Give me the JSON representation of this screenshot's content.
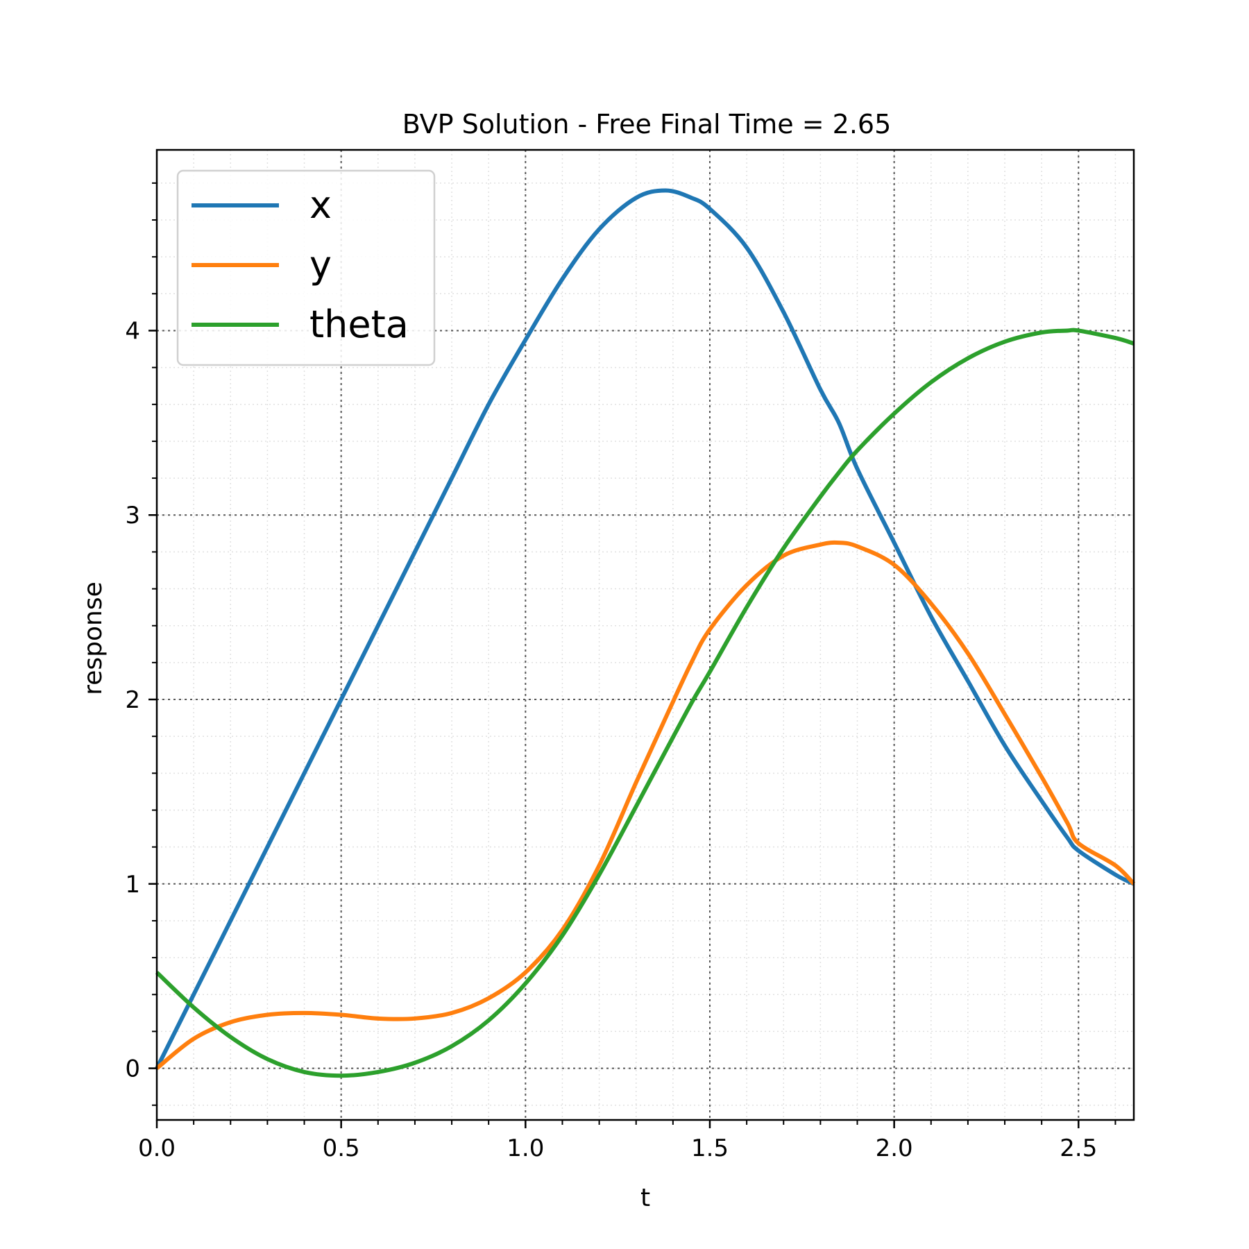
{
  "chart_data": {
    "type": "line",
    "title": "BVP Solution - Free Final Time = 2.65",
    "xlabel": "t",
    "ylabel": "response",
    "xlim": [
      0,
      2.65
    ],
    "ylim": [
      -0.28,
      4.98
    ],
    "xticks": [
      {
        "value": 0.0,
        "label": "0.0"
      },
      {
        "value": 0.5,
        "label": "0.5"
      },
      {
        "value": 1.0,
        "label": "1.0"
      },
      {
        "value": 1.5,
        "label": "1.5"
      },
      {
        "value": 2.0,
        "label": "2.0"
      },
      {
        "value": 2.5,
        "label": "2.5"
      }
    ],
    "yticks": [
      {
        "value": 0,
        "label": "0"
      },
      {
        "value": 1,
        "label": "1"
      },
      {
        "value": 2,
        "label": "2"
      },
      {
        "value": 3,
        "label": "3"
      },
      {
        "value": 4,
        "label": "4"
      }
    ],
    "x_minor_step": 0.1,
    "y_minor_step": 0.2,
    "grid": {
      "major": "dotted",
      "minor": "dotted"
    },
    "legend": "upper-left",
    "x": [
      0.0,
      0.1,
      0.2,
      0.3,
      0.4,
      0.5,
      0.6,
      0.7,
      0.8,
      0.9,
      1.0,
      1.1,
      1.2,
      1.3,
      1.38,
      1.45,
      1.5,
      1.6,
      1.7,
      1.8,
      1.85,
      1.9,
      2.0,
      2.1,
      2.2,
      2.3,
      2.4,
      2.47,
      2.5,
      2.6,
      2.65
    ],
    "series": [
      {
        "name": "x",
        "color": "#1f77b4",
        "values": [
          0.0,
          0.4,
          0.8,
          1.2,
          1.6,
          2.0,
          2.4,
          2.8,
          3.2,
          3.6,
          3.95,
          4.28,
          4.55,
          4.72,
          4.76,
          4.72,
          4.66,
          4.45,
          4.1,
          3.68,
          3.5,
          3.25,
          2.85,
          2.45,
          2.1,
          1.75,
          1.45,
          1.25,
          1.18,
          1.05,
          1.0
        ]
      },
      {
        "name": "y",
        "color": "#ff7f0e",
        "values": [
          0.0,
          0.16,
          0.25,
          0.29,
          0.3,
          0.29,
          0.27,
          0.27,
          0.3,
          0.38,
          0.52,
          0.75,
          1.1,
          1.55,
          1.9,
          2.2,
          2.38,
          2.62,
          2.78,
          2.84,
          2.85,
          2.83,
          2.73,
          2.52,
          2.25,
          1.92,
          1.58,
          1.33,
          1.22,
          1.1,
          1.0
        ]
      },
      {
        "name": "theta",
        "color": "#2ca02c",
        "values": [
          0.52,
          0.33,
          0.17,
          0.05,
          -0.02,
          -0.04,
          -0.02,
          0.03,
          0.12,
          0.26,
          0.46,
          0.72,
          1.05,
          1.42,
          1.72,
          1.98,
          2.15,
          2.5,
          2.82,
          3.1,
          3.23,
          3.35,
          3.55,
          3.72,
          3.85,
          3.94,
          3.99,
          4.0,
          4.0,
          3.96,
          3.93
        ]
      }
    ]
  }
}
